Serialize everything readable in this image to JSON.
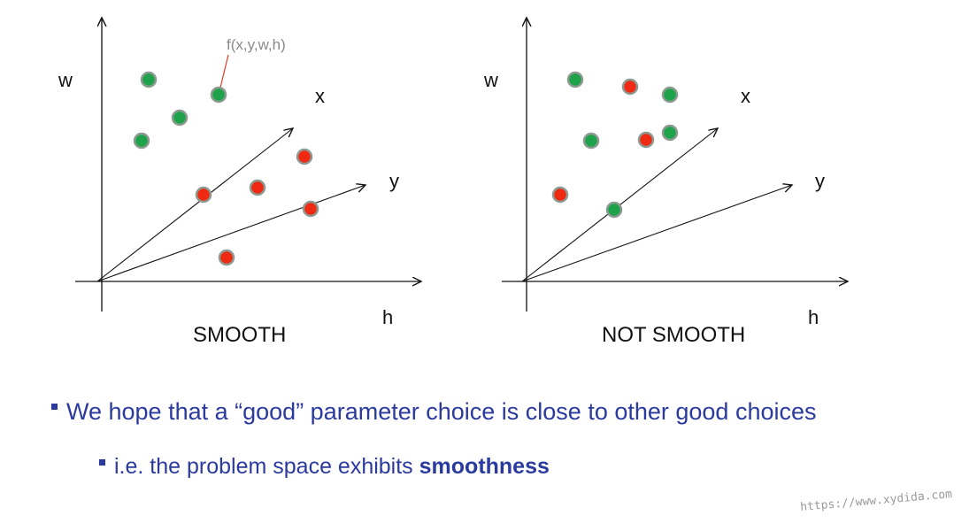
{
  "panels": [
    {
      "caption": "SMOOTH",
      "axis_w": "w",
      "axis_h": "h",
      "axis_x": "x",
      "axis_y": "y",
      "function_label": "f(x,y,w,h)",
      "points": [
        {
          "color": "green"
        },
        {
          "color": "green"
        },
        {
          "color": "green"
        },
        {
          "color": "green"
        },
        {
          "color": "red"
        },
        {
          "color": "red"
        },
        {
          "color": "red"
        },
        {
          "color": "red"
        },
        {
          "color": "red"
        }
      ]
    },
    {
      "caption": "NOT SMOOTH",
      "axis_w": "w",
      "axis_h": "h",
      "axis_x": "x",
      "axis_y": "y",
      "points": [
        {
          "color": "green"
        },
        {
          "color": "red"
        },
        {
          "color": "green"
        },
        {
          "color": "green"
        },
        {
          "color": "red"
        },
        {
          "color": "green"
        },
        {
          "color": "red"
        },
        {
          "color": "green"
        }
      ]
    }
  ],
  "bullets": {
    "line1": "We hope that a “good” parameter choice is close to other good choices",
    "line2_prefix": "i.e. the problem space exhibits ",
    "line2_bold": "smoothness"
  },
  "watermark": "https://www.xydida.com",
  "colors": {
    "green": "#1fa34a",
    "red": "#f02a12",
    "point_ring": "#8d9a92",
    "bullet_text": "#2b3a9e"
  }
}
